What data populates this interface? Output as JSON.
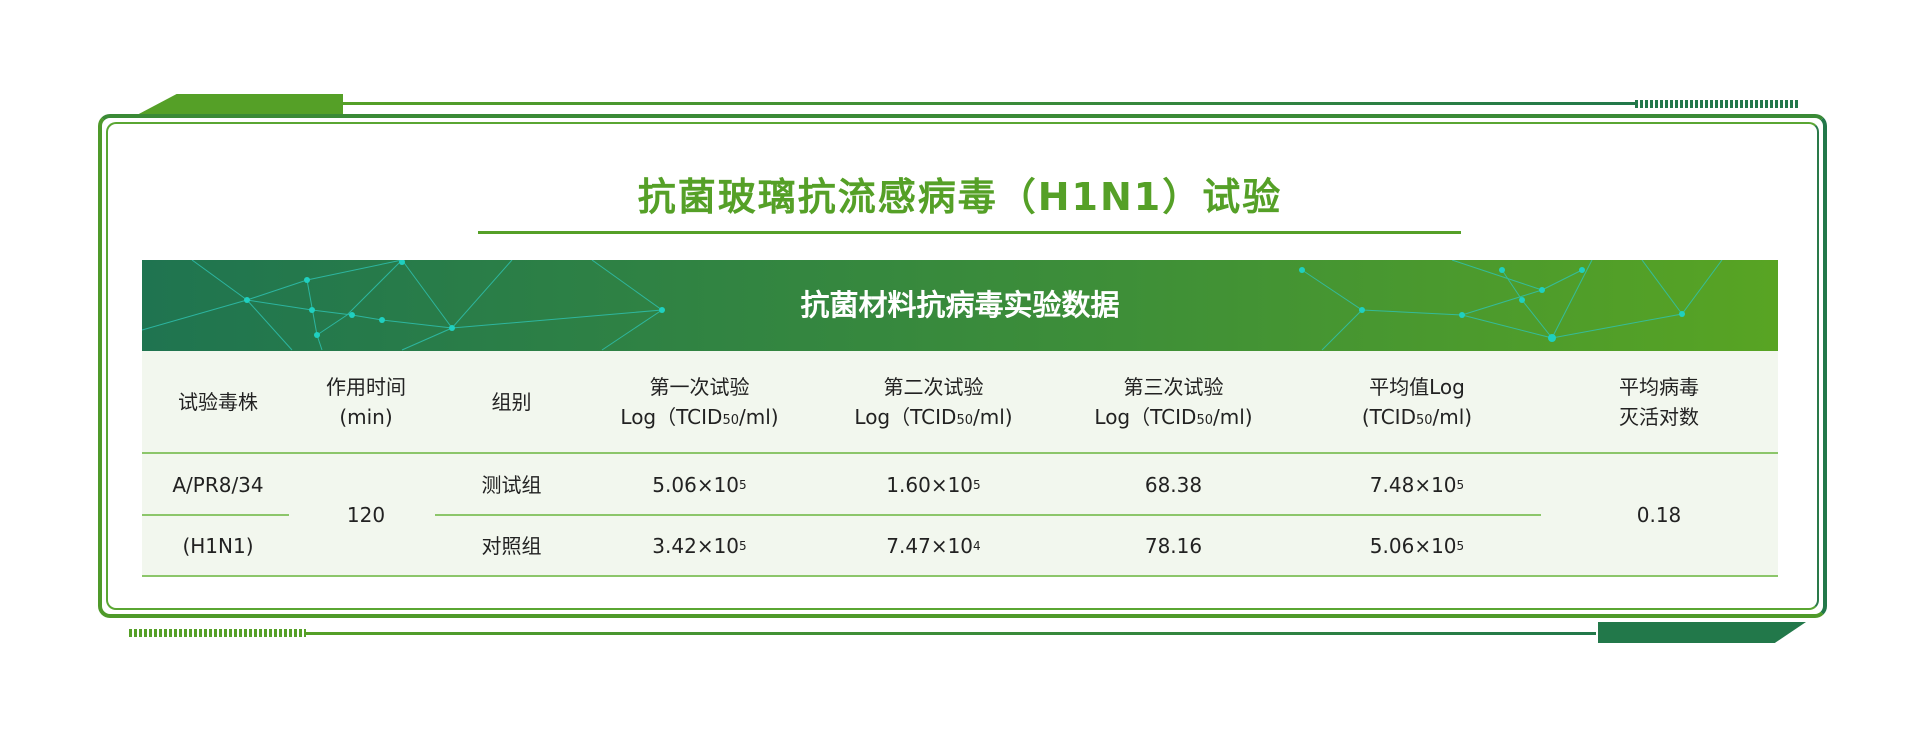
{
  "title": "抗菌玻璃抗流感病毒（H1N1）试验",
  "banner_title": "抗菌材料抗病毒实验数据",
  "colors": {
    "primary_green": "#55a027",
    "dark_green": "#22784a",
    "table_bg": "#f2f7ee",
    "node": "#1fd0c0"
  },
  "table": {
    "headers": [
      {
        "line1": "试验毒株",
        "line2": ""
      },
      {
        "line1": "作用时间",
        "line2": "(min)"
      },
      {
        "line1": "组别",
        "line2": ""
      },
      {
        "line1": "第一次试验",
        "line2a": "Log（TCID",
        "sub": "50",
        "line2b": "/ml)"
      },
      {
        "line1": "第二次试验",
        "line2a": "Log（TCID",
        "sub": "50",
        "line2b": "/ml)"
      },
      {
        "line1": "第三次试验",
        "line2a": "Log（TCID",
        "sub": "50",
        "line2b": "/ml)"
      },
      {
        "line1": "平均值Log",
        "line2a": "(TCID",
        "sub": "50",
        "line2b": "/ml)"
      },
      {
        "line1": "平均病毒",
        "line2": "灭活对数"
      }
    ],
    "strain_line1": "A/PR8/34",
    "strain_line2": "(H1N1)",
    "time": "120",
    "inactivation_log": "0.18",
    "rows": [
      {
        "group": "测试组",
        "t1": {
          "m": "5.06",
          "e": "5"
        },
        "t2": {
          "m": "1.60",
          "e": "5"
        },
        "t3": "68.38",
        "avg": {
          "m": "7.48",
          "e": "5"
        }
      },
      {
        "group": "对照组",
        "t1": {
          "m": "3.42",
          "e": "5"
        },
        "t2": {
          "m": "7.47",
          "e": "4"
        },
        "t3": "78.16",
        "avg": {
          "m": "5.06",
          "e": "5"
        }
      }
    ],
    "times_sign": "×10"
  }
}
